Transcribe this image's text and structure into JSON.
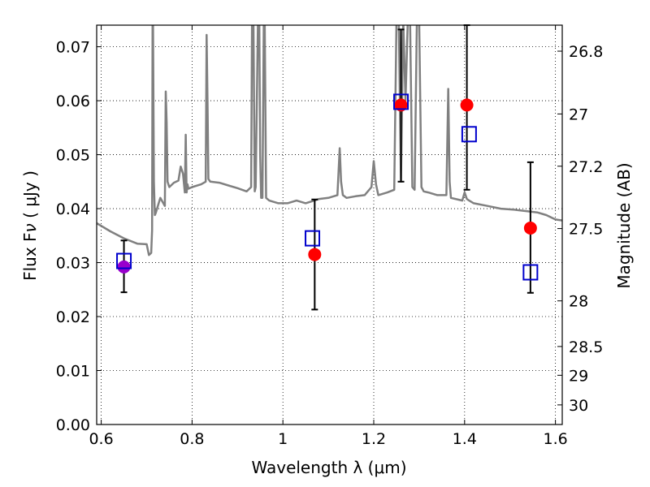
{
  "chart_data": {
    "type": "scatter",
    "title": "",
    "xlabel": "Wavelength  λ (μm)",
    "ylabel": "Flux  F",
    "ylabel_subscript": "ν",
    "ylabel_units": " ( μJy )",
    "ylabel_right": "Magnitude (AB)",
    "xlim": [
      0.59,
      1.615
    ],
    "ylim": [
      0.0,
      0.074
    ],
    "grid": true,
    "x_ticks": [
      0.6,
      0.8,
      1.0,
      1.2,
      1.4,
      1.6
    ],
    "x_tick_labels": [
      "0.6",
      "0.8",
      "1",
      "1.2",
      "1.4",
      "1.6"
    ],
    "y_ticks": [
      0.0,
      0.01,
      0.02,
      0.03,
      0.04,
      0.05,
      0.06,
      0.07
    ],
    "y_tick_labels": [
      "0.00",
      "0.01",
      "0.02",
      "0.03",
      "0.04",
      "0.05",
      "0.06",
      "0.07"
    ],
    "right_ticks": [
      {
        "mag": 26.8,
        "label": "26.8"
      },
      {
        "mag": 27.0,
        "label": "27"
      },
      {
        "mag": 27.2,
        "label": "27.2"
      },
      {
        "mag": 27.5,
        "label": "27.5"
      },
      {
        "mag": 28.0,
        "label": "28"
      },
      {
        "mag": 28.5,
        "label": "28.5"
      },
      {
        "mag": 29.0,
        "label": "29"
      },
      {
        "mag": 30.0,
        "label": "30"
      }
    ],
    "series": [
      {
        "name": "model SED",
        "kind": "line",
        "color": "#808080",
        "x": [
          0.59,
          0.62,
          0.65,
          0.68,
          0.7,
          0.705,
          0.71,
          0.712,
          0.713,
          0.714,
          0.716,
          0.718,
          0.72,
          0.73,
          0.74,
          0.742,
          0.744,
          0.746,
          0.75,
          0.76,
          0.77,
          0.775,
          0.78,
          0.784,
          0.786,
          0.788,
          0.79,
          0.792,
          0.8,
          0.82,
          0.83,
          0.832,
          0.834,
          0.836,
          0.84,
          0.86,
          0.88,
          0.9,
          0.92,
          0.93,
          0.932,
          0.935,
          0.938,
          0.94,
          0.945,
          0.948,
          0.95,
          0.952,
          0.955,
          0.958,
          0.96,
          0.963,
          0.97,
          0.99,
          1.01,
          1.03,
          1.05,
          1.08,
          1.1,
          1.12,
          1.125,
          1.128,
          1.132,
          1.14,
          1.16,
          1.18,
          1.195,
          1.2,
          1.205,
          1.21,
          1.23,
          1.245,
          1.25,
          1.255,
          1.26,
          1.265,
          1.27,
          1.275,
          1.28,
          1.285,
          1.29,
          1.295,
          1.3,
          1.305,
          1.31,
          1.32,
          1.34,
          1.36,
          1.364,
          1.367,
          1.37,
          1.38,
          1.395,
          1.4,
          1.405,
          1.41,
          1.42,
          1.45,
          1.48,
          1.51,
          1.54,
          1.56,
          1.58,
          1.6,
          1.615
        ],
        "y": [
          0.0373,
          0.0358,
          0.0345,
          0.0335,
          0.0334,
          0.0314,
          0.0318,
          0.036,
          0.075,
          0.075,
          0.045,
          0.0388,
          0.0392,
          0.042,
          0.0405,
          0.0617,
          0.056,
          0.045,
          0.044,
          0.0448,
          0.0452,
          0.0478,
          0.0465,
          0.043,
          0.0537,
          0.043,
          0.0445,
          0.0437,
          0.044,
          0.0445,
          0.045,
          0.0722,
          0.06,
          0.0455,
          0.045,
          0.0448,
          0.0443,
          0.0438,
          0.0432,
          0.044,
          0.075,
          0.075,
          0.0432,
          0.044,
          0.075,
          0.075,
          0.05,
          0.042,
          0.042,
          0.075,
          0.075,
          0.042,
          0.0415,
          0.041,
          0.041,
          0.0415,
          0.041,
          0.0418,
          0.042,
          0.0425,
          0.0512,
          0.045,
          0.0425,
          0.042,
          0.0423,
          0.0425,
          0.044,
          0.0488,
          0.0445,
          0.0425,
          0.043,
          0.0435,
          0.075,
          0.075,
          0.045,
          0.075,
          0.06,
          0.075,
          0.075,
          0.044,
          0.0435,
          0.075,
          0.075,
          0.044,
          0.0432,
          0.043,
          0.0425,
          0.0425,
          0.0622,
          0.045,
          0.042,
          0.0418,
          0.0415,
          0.043,
          0.0418,
          0.0415,
          0.041,
          0.0405,
          0.04,
          0.0398,
          0.0395,
          0.0393,
          0.0388,
          0.038,
          0.0378
        ]
      },
      {
        "name": "observed",
        "kind": "points",
        "marker": "circle",
        "color": "#ff0000",
        "x": [
          1.07,
          1.26,
          1.405,
          1.545
        ],
        "y": [
          0.0315,
          0.0592,
          0.0592,
          0.0364
        ],
        "yerr_low": [
          0.0102,
          0.0142,
          0.0157,
          0.012
        ],
        "yerr_high": [
          0.0102,
          0.014,
          0.0148,
          0.0122
        ]
      },
      {
        "name": "observed (optical)",
        "kind": "points",
        "marker": "circle",
        "color": "#9900cc",
        "x": [
          0.65
        ],
        "y": [
          0.0292
        ],
        "yerr_low": [
          0.0047
        ],
        "yerr_high": [
          0.0049
        ]
      },
      {
        "name": "model photometry",
        "kind": "points",
        "marker": "square-open",
        "color": "#0000cc",
        "x": [
          0.65,
          1.065,
          1.26,
          1.41,
          1.545
        ],
        "y": [
          0.0303,
          0.0345,
          0.0598,
          0.0538,
          0.0282
        ]
      }
    ]
  }
}
